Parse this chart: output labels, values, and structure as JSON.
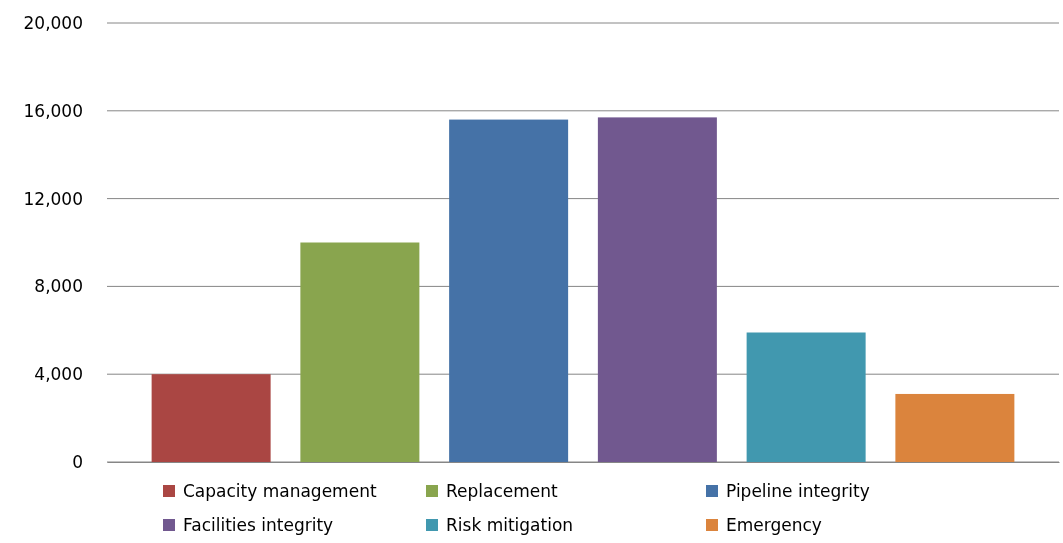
{
  "chart_data": {
    "type": "bar",
    "stacked": true,
    "categories": [
      null,
      null,
      null,
      null,
      null,
      null
    ],
    "series": [
      {
        "name": "Capacity management",
        "color": "#aa4643",
        "values": [
          4000,
          null,
          null,
          null,
          null,
          null
        ]
      },
      {
        "name": "Replacement",
        "color": "#89a54e",
        "values": [
          null,
          10000,
          null,
          null,
          null,
          null
        ]
      },
      {
        "name": "Pipeline integrity",
        "color": "#4572a7",
        "values": [
          null,
          null,
          15600,
          null,
          null,
          null
        ]
      },
      {
        "name": "Facilities integrity",
        "color": "#71588f",
        "values": [
          null,
          null,
          null,
          15700,
          null,
          null
        ]
      },
      {
        "name": "Risk mitigation",
        "color": "#4198af",
        "values": [
          null,
          null,
          null,
          null,
          5900,
          null
        ]
      },
      {
        "name": "Emergency",
        "color": "#db843d",
        "values": [
          null,
          null,
          null,
          null,
          null,
          3100
        ]
      }
    ],
    "ylim": [
      0,
      20000
    ],
    "yticks": [
      {
        "value": 0,
        "label": "0"
      },
      {
        "value": 4000,
        "label": "4,000"
      },
      {
        "value": 8000,
        "label": "8,000"
      },
      {
        "value": 12000,
        "label": "12,000"
      },
      {
        "value": 16000,
        "label": "16,000"
      },
      {
        "value": 20000,
        "label": "20,000"
      }
    ],
    "grid": "y",
    "legend": "bottom"
  }
}
